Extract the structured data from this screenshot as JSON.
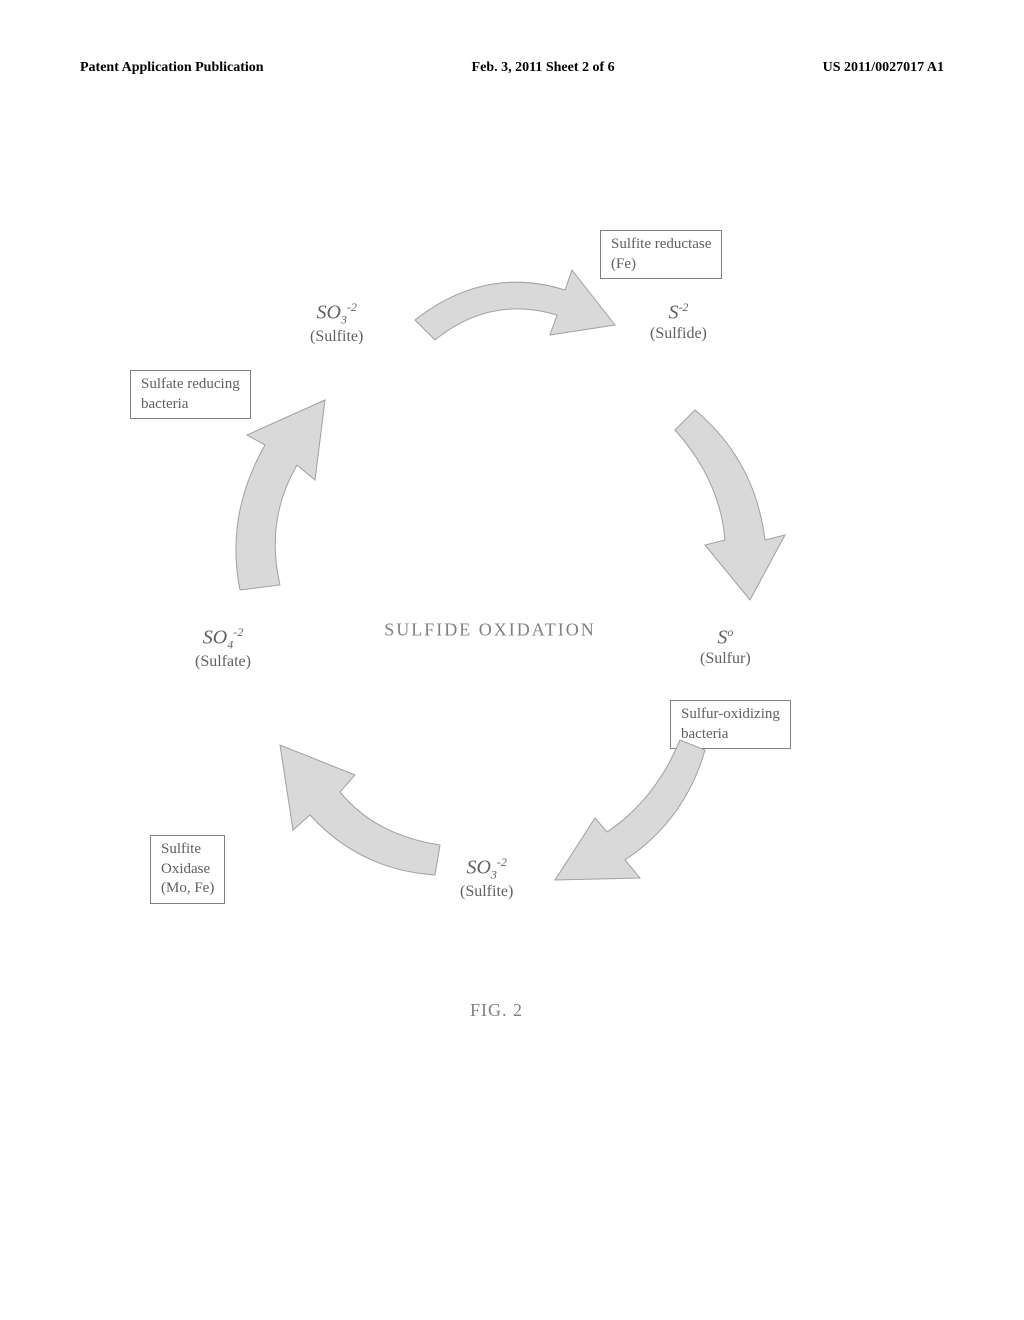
{
  "header": {
    "left": "Patent Application Publication",
    "center": "Feb. 3, 2011  Sheet 2 of 6",
    "right": "US 2011/0027017 A1"
  },
  "diagram": {
    "center_text": "SULFIDE OXIDATION",
    "nodes": {
      "sulfite_top": {
        "formula_html": "SO<sub>3</sub><sup>-2</sup>",
        "name": "(Sulfite)"
      },
      "sulfide": {
        "formula_html": "S<sup>-2</sup>",
        "name": "(Sulfide)"
      },
      "sulfur": {
        "formula_html": "S<sup>o</sup>",
        "name": "(Sulfur)"
      },
      "sulfite_bottom": {
        "formula_html": "SO<sub>3</sub><sup>-2</sup>",
        "name": "(Sulfite)"
      },
      "sulfate": {
        "formula_html": "SO<sub>4</sub><sup>-2</sup>",
        "name": "(Sulfate)"
      }
    },
    "labels": {
      "sulfite_reductase": "Sulfite reductase\n(Fe)",
      "sulfur_oxidizing": "Sulfur-oxidizing\nbacteria",
      "sulfite_oxidase": "Sulfite\nOxidase\n(Mo, Fe)",
      "sulfate_reducing": "Sulfate reducing\nbacteria"
    },
    "fig_label": "FIG. 2",
    "colors": {
      "arrow_fill": "#d9d9d9",
      "arrow_stroke": "#a0a0a0",
      "text_gray": "#808080",
      "box_border": "#808080"
    }
  }
}
